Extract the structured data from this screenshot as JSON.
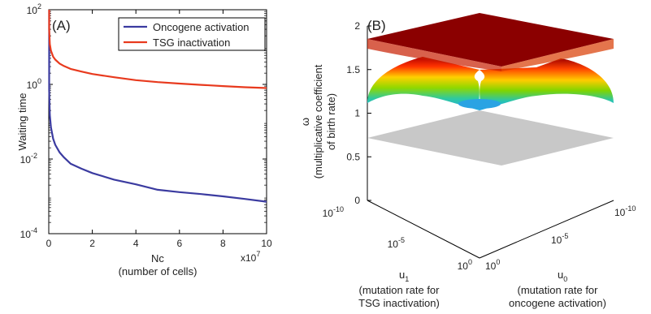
{
  "chart_data": [
    {
      "panel_label": "(A)",
      "type": "line",
      "xlabel": "Nc",
      "xlabel_sub": "(number of cells)",
      "ylabel": "Waiting time",
      "x_multiplier_label": "x10",
      "x_multiplier_exp": "7",
      "x_scale": "linear",
      "y_scale": "log",
      "xlim": [
        0,
        10
      ],
      "ylim": [
        0.0001,
        100
      ],
      "x_ticks": [
        "0",
        "2",
        "4",
        "6",
        "8",
        "10"
      ],
      "y_ticks": [
        {
          "value": 100,
          "base": "10",
          "exp": "2"
        },
        {
          "value": 1,
          "base": "10",
          "exp": "0"
        },
        {
          "value": 0.01,
          "base": "10",
          "exp": "-2"
        },
        {
          "value": 0.0001,
          "base": "10",
          "exp": "-4"
        }
      ],
      "legend_position": "top-right",
      "series": [
        {
          "name": "Oncogene activation",
          "color": "#3b3ba0",
          "x": [
            0.02,
            0.05,
            0.1,
            0.2,
            0.3,
            0.5,
            0.7,
            1.0,
            1.5,
            2.0,
            3.0,
            4.0,
            5.0,
            6.0,
            7.0,
            8.0,
            9.0,
            10.0
          ],
          "y": [
            0.7,
            0.15,
            0.07,
            0.035,
            0.024,
            0.015,
            0.011,
            0.0075,
            0.0055,
            0.0042,
            0.0028,
            0.0021,
            0.0015,
            0.0013,
            0.00115,
            0.001,
            0.00085,
            0.00072
          ]
        },
        {
          "name": "TSG inactivation",
          "color": "#e83a1e",
          "x": [
            0.02,
            0.05,
            0.1,
            0.2,
            0.3,
            0.5,
            0.7,
            1.0,
            1.5,
            2.0,
            3.0,
            4.0,
            5.0,
            6.0,
            7.0,
            8.0,
            9.0,
            10.0
          ],
          "y": [
            30,
            12,
            8,
            5.5,
            4.6,
            3.6,
            3.1,
            2.6,
            2.2,
            1.9,
            1.55,
            1.3,
            1.15,
            1.05,
            0.97,
            0.9,
            0.84,
            0.8
          ]
        }
      ]
    },
    {
      "panel_label": "(B)",
      "type": "surface3d",
      "zlabel": "ω",
      "zlabel_sub1": "(multiplicative coefficient",
      "zlabel_sub2": "of birth rate)",
      "zlim": [
        0,
        2
      ],
      "z_ticks": [
        "0",
        "0.5",
        "1",
        "1.5",
        "2"
      ],
      "u1_label": "u",
      "u1_sub": "1",
      "u1_desc1": "(mutation rate for",
      "u1_desc2": "TSG inactivation)",
      "u0_label": "u",
      "u0_sub": "0",
      "u0_desc1": "(mutation rate for",
      "u0_desc2": "oncogene activation)",
      "u1_ticks": [
        {
          "base": "10",
          "exp": "-10"
        },
        {
          "base": "10",
          "exp": "-5"
        },
        {
          "base": "10",
          "exp": "0"
        }
      ],
      "u0_ticks": [
        {
          "base": "10",
          "exp": "-10"
        },
        {
          "base": "10",
          "exp": "-5"
        },
        {
          "base": "10",
          "exp": "0"
        }
      ],
      "plateau_value": 2,
      "floor_value": 1,
      "plane_value": 0.8,
      "colors": {
        "plateau": "#8b0000",
        "plane": "#c8c8c8"
      }
    }
  ]
}
